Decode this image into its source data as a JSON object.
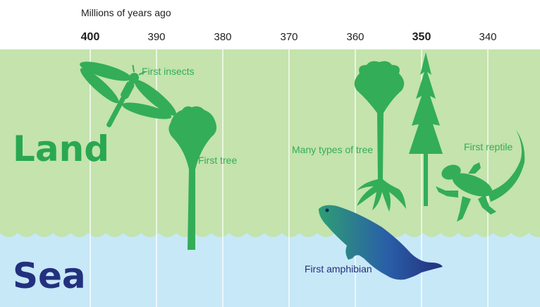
{
  "title": "Millions of years ago",
  "colors": {
    "land": "#c4e3ad",
    "sea": "#c7e8f7",
    "land_text": "#29a850",
    "sea_text": "#23307e",
    "silhouette": "#33ad58",
    "gridline": "#ffffff"
  },
  "axis": {
    "ticks": [
      {
        "value": 400,
        "label": "400",
        "bold": true
      },
      {
        "value": 390,
        "label": "390",
        "bold": false
      },
      {
        "value": 380,
        "label": "380",
        "bold": false
      },
      {
        "value": 370,
        "label": "370",
        "bold": false
      },
      {
        "value": 360,
        "label": "360",
        "bold": false
      },
      {
        "value": 350,
        "label": "350",
        "bold": true
      },
      {
        "value": 340,
        "label": "340",
        "bold": false
      }
    ]
  },
  "zones": {
    "land": "Land",
    "sea": "Sea"
  },
  "events": [
    {
      "id": "insects",
      "label": "First insects",
      "icon": "dragonfly-icon"
    },
    {
      "id": "tree",
      "label": "First tree",
      "icon": "tree-icon"
    },
    {
      "id": "many-trees",
      "label": "Many types of tree",
      "icon": "conifer-icon"
    },
    {
      "id": "amphibian",
      "label": "First amphibian",
      "icon": "amphibian-icon"
    },
    {
      "id": "reptile",
      "label": "First reptile",
      "icon": "lizard-icon"
    }
  ]
}
